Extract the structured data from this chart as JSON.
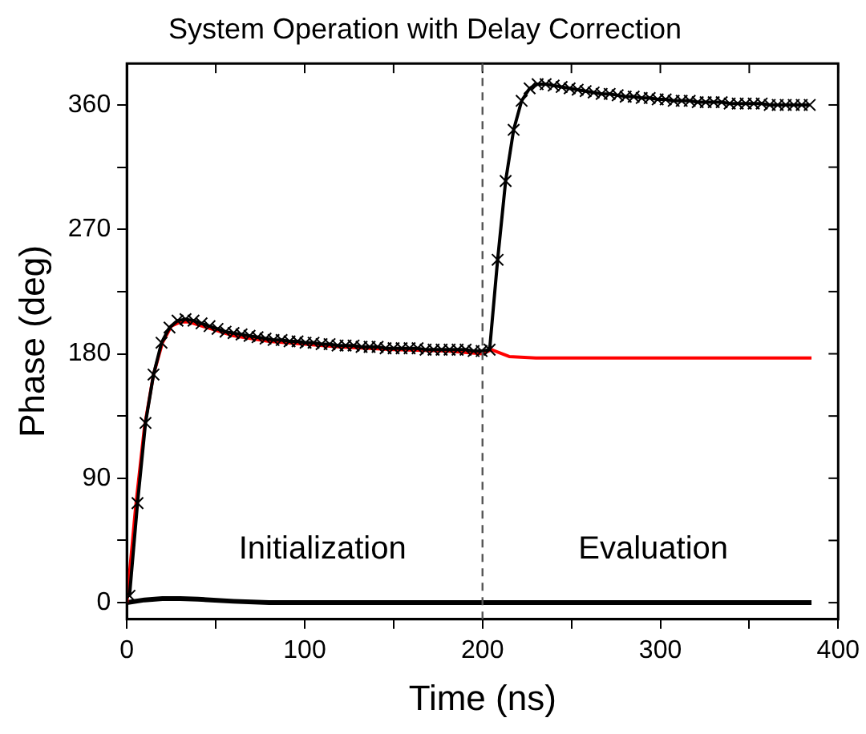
{
  "chart_data": {
    "type": "line",
    "title": "System Operation with Delay Correction",
    "xlabel": "Time (ns)",
    "ylabel": "Phase (deg)",
    "xlim": [
      0,
      400
    ],
    "xticks": [
      0,
      {
        "value": 50,
        "label": null
      },
      100,
      {
        "value": 150,
        "label": null
      },
      200,
      {
        "value": 250,
        "label": null
      },
      300,
      {
        "value": 350,
        "label": null
      },
      400
    ],
    "ylim": [
      -12,
      390
    ],
    "yticks": [
      0,
      {
        "value": 45,
        "label": null
      },
      90,
      {
        "value": 135,
        "label": null
      },
      180,
      {
        "value": 225,
        "label": null
      },
      270,
      {
        "value": 315,
        "label": null
      },
      360
    ],
    "grid": false,
    "legend": false,
    "ref_lines": [
      {
        "axis": "x",
        "value": 200,
        "color": "#555555",
        "line_style": "dashed"
      }
    ],
    "annotations": [
      "Initialization",
      "Evaluation"
    ],
    "series": [
      {
        "color": "#000000",
        "marker": "cross",
        "x": [
          1.5,
          6,
          10.5,
          15,
          19.5,
          24,
          28.5,
          33,
          37.5,
          42,
          46.5,
          51,
          55.5,
          60,
          64.5,
          69,
          73.5,
          78,
          82.5,
          87,
          91.5,
          96,
          100.5,
          105,
          109.5,
          114,
          118.5,
          123,
          127.5,
          132,
          136.5,
          141,
          145.5,
          150,
          154.5,
          159,
          163.5,
          168,
          172.5,
          177,
          181.5,
          186,
          190.5,
          195,
          199.5,
          204,
          208.5,
          213,
          217.5,
          222,
          226.5,
          231,
          235.5,
          240,
          244.5,
          249,
          253.5,
          258,
          262.5,
          267,
          271.5,
          276,
          280.5,
          285,
          289.5,
          294,
          298.5,
          303,
          307.5,
          312,
          316.5,
          321,
          325.5,
          330,
          334.5,
          339,
          343.5,
          348,
          352.5,
          357,
          361.5,
          366,
          370.5,
          375,
          379.5,
          384
        ],
        "values": [
          5,
          72,
          130,
          165,
          188,
          199,
          204,
          205,
          204,
          202,
          200,
          198,
          196,
          195,
          194,
          193,
          192,
          191,
          190,
          190,
          189,
          189,
          188,
          188,
          187,
          187,
          186,
          186,
          186,
          185,
          185,
          185,
          184,
          184,
          184,
          184,
          184,
          183,
          183,
          183,
          183,
          183,
          183,
          182,
          182,
          183,
          248,
          305,
          342,
          363,
          372,
          375,
          375,
          374,
          373,
          372,
          371,
          370,
          369,
          368,
          368,
          367,
          366,
          366,
          365,
          365,
          364,
          364,
          363,
          363,
          363,
          362,
          362,
          362,
          362,
          361,
          361,
          361,
          361,
          361,
          360,
          360,
          360,
          360,
          360,
          360
        ]
      },
      {
        "color": "#ff0000",
        "marker": "none",
        "x": [
          0,
          5,
          10,
          15,
          20,
          25,
          30,
          35,
          40,
          50,
          60,
          80,
          100,
          120,
          150,
          180,
          200,
          205,
          215,
          230,
          300,
          385
        ],
        "values": [
          0,
          70,
          128,
          165,
          188,
          200,
          203,
          203,
          201,
          197,
          193,
          189,
          187,
          185,
          183,
          182,
          180,
          183,
          178,
          177,
          177,
          177
        ]
      },
      {
        "color": "#000000",
        "marker": "none",
        "x": [
          0,
          10,
          20,
          30,
          40,
          60,
          80,
          385
        ],
        "values": [
          0,
          2,
          3,
          3,
          2.5,
          1,
          0,
          0
        ]
      }
    ]
  }
}
